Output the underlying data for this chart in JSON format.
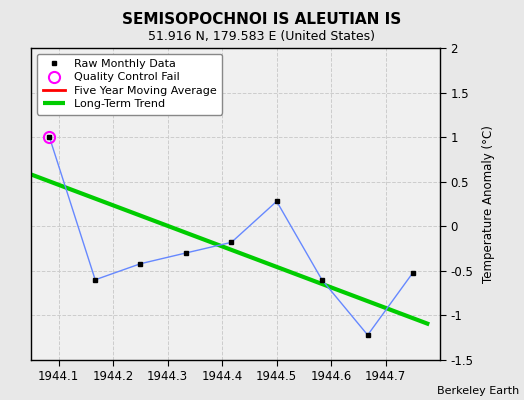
{
  "title": "SEMISOPOCHNOI IS ALEUTIAN IS",
  "subtitle": "51.916 N, 179.583 E (United States)",
  "credit": "Berkeley Earth",
  "raw_x": [
    1944.083,
    1944.167,
    1944.25,
    1944.333,
    1944.417,
    1944.5,
    1944.583,
    1944.667,
    1944.75
  ],
  "raw_y": [
    1.0,
    -0.6,
    -0.42,
    -0.3,
    -0.18,
    0.28,
    -0.6,
    -1.22,
    -0.52
  ],
  "qc_fail_x": [
    1944.083
  ],
  "qc_fail_y": [
    1.0
  ],
  "trend_x": [
    1944.05,
    1944.78
  ],
  "trend_y": [
    0.58,
    -1.1
  ],
  "five_yr_x": [],
  "five_yr_y": [],
  "xlim": [
    1944.05,
    1944.8
  ],
  "ylim": [
    -1.5,
    2.0
  ],
  "yticks": [
    -1.5,
    -1.0,
    -0.5,
    0.0,
    0.5,
    1.0,
    1.5,
    2.0
  ],
  "ytick_labels": [
    "-1.5",
    "-1",
    "-0.5",
    "0",
    "0.5",
    "1",
    "1.5",
    "2"
  ],
  "xticks": [
    1944.1,
    1944.2,
    1944.3,
    1944.4,
    1944.5,
    1944.6,
    1944.7
  ],
  "xtick_labels": [
    "1944.1",
    "1944.2",
    "1944.3",
    "1944.4",
    "1944.5",
    "1944.6",
    "1944.7"
  ],
  "bg_color": "#e8e8e8",
  "plot_bg_color": "#f0f0f0",
  "raw_line_color": "#6688ff",
  "raw_marker_color": "#000000",
  "raw_marker_size": 3.5,
  "qc_marker_color": "#ff00ff",
  "five_yr_color": "#ff0000",
  "trend_color": "#00cc00",
  "trend_linewidth": 3.0,
  "ylabel": "Temperature Anomaly (°C)",
  "ylabel_fontsize": 8.5,
  "title_fontsize": 11,
  "subtitle_fontsize": 9,
  "tick_fontsize": 8.5,
  "credit_fontsize": 8
}
